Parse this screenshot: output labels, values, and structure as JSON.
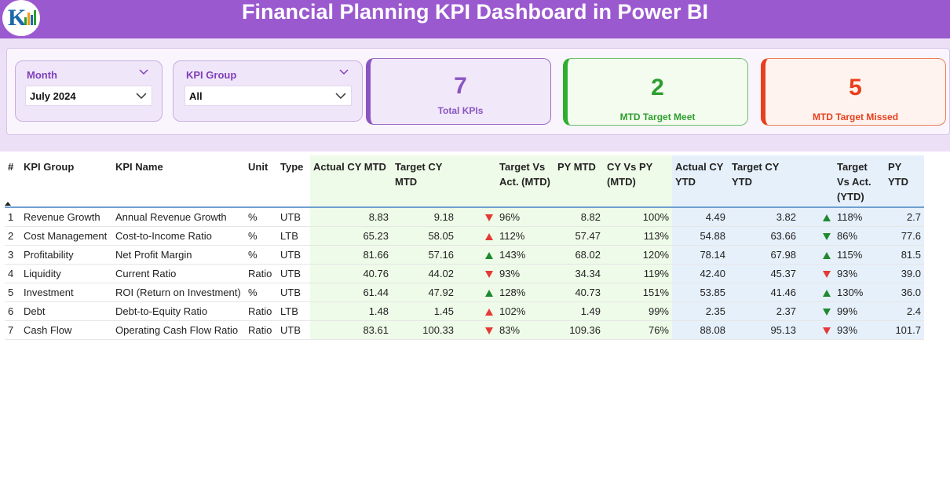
{
  "header": {
    "title": "Financial Planning KPI Dashboard in Power BI",
    "logo_text": "K",
    "colors": {
      "header_bg": "#9b59cf",
      "accent_purple": "#7e3fb8",
      "green": "#2e9e2e",
      "red": "#e8401c"
    }
  },
  "filters": {
    "month": {
      "label": "Month",
      "value": "July 2024"
    },
    "kpi_group": {
      "label": "KPI Group",
      "value": "All"
    }
  },
  "cards": {
    "total": {
      "value": "7",
      "label": "Total KPIs"
    },
    "meet": {
      "value": "2",
      "label": "MTD Target Meet"
    },
    "missed": {
      "value": "5",
      "label": "MTD Target Missed"
    }
  },
  "table": {
    "headers": [
      "#",
      "KPI Group",
      "KPI Name",
      "Unit",
      "Type",
      "Actual CY MTD",
      "Target CY MTD",
      "",
      "Target Vs Act. (MTD)",
      "PY MTD",
      "CY Vs PY (MTD)",
      "Actual CY YTD",
      "Target CY YTD",
      "",
      "Target Vs Act. (YTD)",
      "PY YTD"
    ],
    "rows": [
      {
        "num": "1",
        "group": "Revenue Growth",
        "name": "Annual Revenue Growth",
        "unit": "%",
        "type": "UTB",
        "act_mtd": "8.83",
        "tgt_mtd": "9.18",
        "mtd_icon": "down",
        "tva_mtd": "96%",
        "py_mtd": "8.82",
        "cvp_mtd": "100%",
        "act_ytd": "4.49",
        "tgt_ytd": "3.82",
        "ytd_icon": "up",
        "tva_ytd": "118%",
        "py_ytd": "2.7"
      },
      {
        "num": "2",
        "group": "Cost Management",
        "name": "Cost-to-Income Ratio",
        "unit": "%",
        "type": "LTB",
        "act_mtd": "65.23",
        "tgt_mtd": "58.05",
        "mtd_icon": "up-red",
        "tva_mtd": "112%",
        "py_mtd": "57.47",
        "cvp_mtd": "113%",
        "act_ytd": "54.88",
        "tgt_ytd": "63.66",
        "ytd_icon": "down-green",
        "tva_ytd": "86%",
        "py_ytd": "77.6"
      },
      {
        "num": "3",
        "group": "Profitability",
        "name": "Net Profit Margin",
        "unit": "%",
        "type": "UTB",
        "act_mtd": "81.66",
        "tgt_mtd": "57.16",
        "mtd_icon": "up",
        "tva_mtd": "143%",
        "py_mtd": "68.02",
        "cvp_mtd": "120%",
        "act_ytd": "78.14",
        "tgt_ytd": "67.98",
        "ytd_icon": "up",
        "tva_ytd": "115%",
        "py_ytd": "81.5"
      },
      {
        "num": "4",
        "group": "Liquidity",
        "name": "Current Ratio",
        "unit": "Ratio",
        "type": "UTB",
        "act_mtd": "40.76",
        "tgt_mtd": "44.02",
        "mtd_icon": "down",
        "tva_mtd": "93%",
        "py_mtd": "34.34",
        "cvp_mtd": "119%",
        "act_ytd": "42.40",
        "tgt_ytd": "45.37",
        "ytd_icon": "down",
        "tva_ytd": "93%",
        "py_ytd": "39.0"
      },
      {
        "num": "5",
        "group": "Investment",
        "name": "ROI (Return on Investment)",
        "unit": "%",
        "type": "UTB",
        "act_mtd": "61.44",
        "tgt_mtd": "47.92",
        "mtd_icon": "up",
        "tva_mtd": "128%",
        "py_mtd": "40.73",
        "cvp_mtd": "151%",
        "act_ytd": "53.85",
        "tgt_ytd": "41.46",
        "ytd_icon": "up",
        "tva_ytd": "130%",
        "py_ytd": "36.0"
      },
      {
        "num": "6",
        "group": "Debt",
        "name": "Debt-to-Equity Ratio",
        "unit": "Ratio",
        "type": "LTB",
        "act_mtd": "1.48",
        "tgt_mtd": "1.45",
        "mtd_icon": "up-red",
        "tva_mtd": "102%",
        "py_mtd": "1.49",
        "cvp_mtd": "99%",
        "act_ytd": "2.35",
        "tgt_ytd": "2.37",
        "ytd_icon": "down-green",
        "tva_ytd": "99%",
        "py_ytd": "2.4"
      },
      {
        "num": "7",
        "group": "Cash Flow",
        "name": "Operating Cash Flow Ratio",
        "unit": "Ratio",
        "type": "UTB",
        "act_mtd": "83.61",
        "tgt_mtd": "100.33",
        "mtd_icon": "down",
        "tva_mtd": "83%",
        "py_mtd": "109.36",
        "cvp_mtd": "76%",
        "act_ytd": "88.08",
        "tgt_ytd": "95.13",
        "ytd_icon": "down",
        "tva_ytd": "93%",
        "py_ytd": "101.7"
      }
    ]
  }
}
